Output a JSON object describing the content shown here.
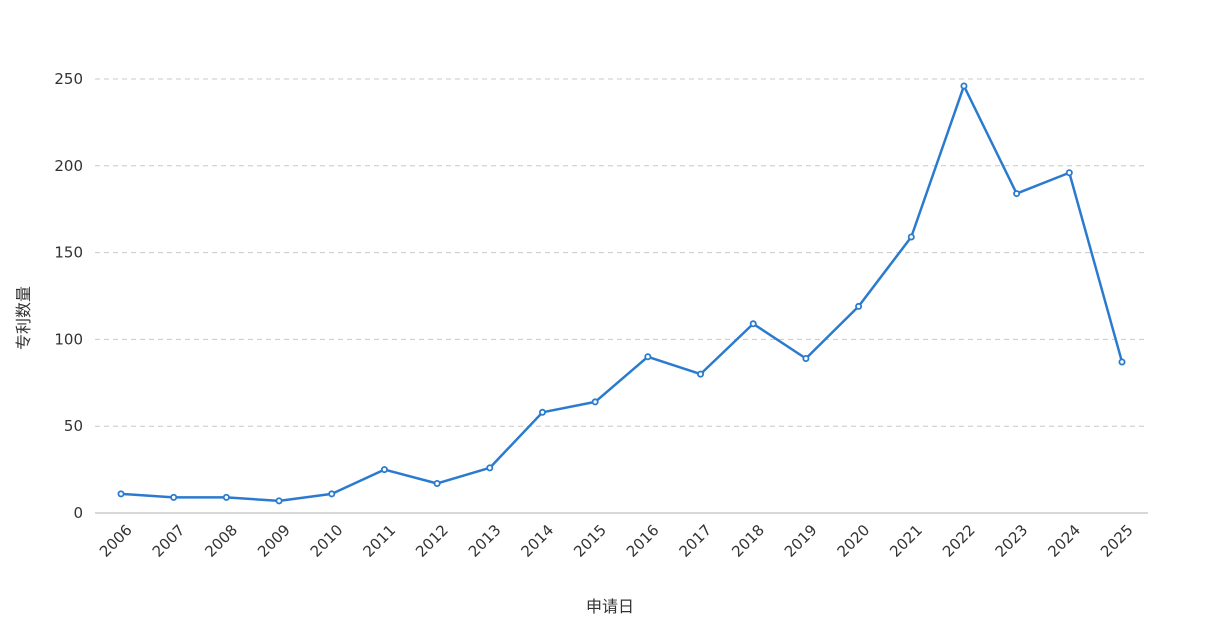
{
  "chart_data": {
    "type": "line",
    "title": "",
    "xlabel": "申请日",
    "ylabel": "专利数量",
    "categories": [
      "2006",
      "2007",
      "2008",
      "2009",
      "2010",
      "2011",
      "2012",
      "2013",
      "2014",
      "2015",
      "2016",
      "2017",
      "2018",
      "2019",
      "2020",
      "2021",
      "2022",
      "2023",
      "2024",
      "2025"
    ],
    "series": [
      {
        "values": [
          11,
          9,
          9,
          7,
          11,
          25,
          17,
          26,
          58,
          64,
          90,
          80,
          109,
          89,
          119,
          159,
          246,
          184,
          196,
          87
        ],
        "color": "#2a7bd0"
      }
    ],
    "ylim": [
      0,
      250
    ],
    "yticks": [
      0,
      50,
      100,
      150,
      200,
      250
    ],
    "grid": true,
    "legend": "none"
  }
}
